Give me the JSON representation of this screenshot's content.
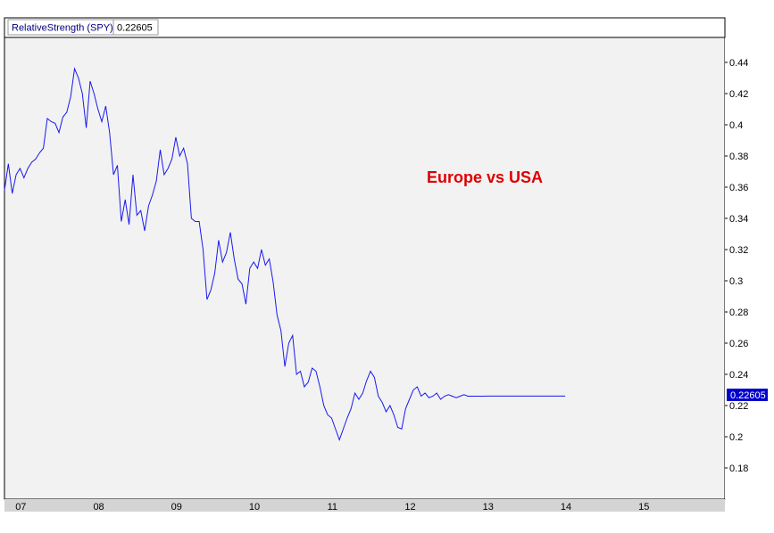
{
  "chart_data": {
    "type": "line",
    "title": "",
    "legend": {
      "series_label": "RelativeStrength (SPY)",
      "value": "0.22605"
    },
    "annotation": {
      "text": "Europe vs USA",
      "color": "#dd0000"
    },
    "last_value_label": "0.22605",
    "xlabel": "",
    "ylabel": "",
    "x_ticks": [
      "07",
      "08",
      "09",
      "10",
      "11",
      "12",
      "13",
      "14",
      "15"
    ],
    "y_ticks": [
      "0.18",
      "0.2",
      "0.22",
      "0.24",
      "0.26",
      "0.28",
      "0.3",
      "0.32",
      "0.34",
      "0.36",
      "0.38",
      "0.4",
      "0.42",
      "0.44"
    ],
    "xlim": [
      2006.8,
      2016.05
    ],
    "ylim": [
      0.16,
      0.456
    ],
    "grid": false,
    "colors": {
      "line": "#1a1aee",
      "plot_bg": "#f2f2f2",
      "axis_strip": "#d4d4d4",
      "last_value_bg": "#0000cc"
    },
    "series": [
      {
        "name": "RelativeStrength (SPY)",
        "x": [
          2006.8,
          2006.85,
          2006.9,
          2006.95,
          2007.0,
          2007.05,
          2007.1,
          2007.15,
          2007.2,
          2007.25,
          2007.3,
          2007.35,
          2007.4,
          2007.45,
          2007.5,
          2007.55,
          2007.6,
          2007.65,
          2007.7,
          2007.75,
          2007.8,
          2007.85,
          2007.9,
          2007.95,
          2008.0,
          2008.05,
          2008.1,
          2008.15,
          2008.2,
          2008.25,
          2008.3,
          2008.35,
          2008.4,
          2008.45,
          2008.5,
          2008.55,
          2008.6,
          2008.65,
          2008.7,
          2008.75,
          2008.8,
          2008.85,
          2008.9,
          2008.95,
          2009.0,
          2009.05,
          2009.1,
          2009.15,
          2009.2,
          2009.25,
          2009.3,
          2009.35,
          2009.4,
          2009.45,
          2009.5,
          2009.55,
          2009.6,
          2009.65,
          2009.7,
          2009.75,
          2009.8,
          2009.85,
          2009.9,
          2009.95,
          2010.0,
          2010.05,
          2010.1,
          2010.15,
          2010.2,
          2010.25,
          2010.3,
          2010.35,
          2010.4,
          2010.45,
          2010.5,
          2010.55,
          2010.6,
          2010.65,
          2010.7,
          2010.75,
          2010.8,
          2010.85,
          2010.9,
          2010.95,
          2011.0,
          2011.05,
          2011.1,
          2011.15,
          2011.2,
          2011.25,
          2011.3,
          2011.35,
          2011.4,
          2011.45,
          2011.5,
          2011.55,
          2011.6,
          2011.65,
          2011.7,
          2011.75,
          2011.8,
          2011.85,
          2011.9,
          2011.95,
          2012.0,
          2012.05,
          2012.1,
          2012.15,
          2012.2,
          2012.25,
          2012.3,
          2012.35,
          2012.4,
          2012.45,
          2012.5,
          2012.55,
          2012.6,
          2012.65,
          2012.7,
          2012.75,
          2012.8,
          2012.85,
          2012.9,
          2012.95,
          2013.0,
          2013.05,
          2013.1,
          2013.15,
          2013.2,
          2013.25,
          2013.3,
          2013.35,
          2013.4,
          2013.45,
          2013.5,
          2013.55,
          2013.6,
          2013.65,
          2013.7,
          2013.75,
          2013.8,
          2013.85,
          2013.9,
          2013.95,
          2014.0
        ],
        "values": [
          0.358,
          0.375,
          0.356,
          0.368,
          0.372,
          0.366,
          0.372,
          0.376,
          0.378,
          0.382,
          0.385,
          0.404,
          0.402,
          0.401,
          0.395,
          0.405,
          0.408,
          0.418,
          0.436,
          0.43,
          0.42,
          0.398,
          0.428,
          0.42,
          0.41,
          0.402,
          0.412,
          0.395,
          0.368,
          0.374,
          0.338,
          0.352,
          0.336,
          0.368,
          0.342,
          0.345,
          0.332,
          0.348,
          0.355,
          0.364,
          0.384,
          0.368,
          0.372,
          0.378,
          0.392,
          0.38,
          0.385,
          0.375,
          0.34,
          0.338,
          0.338,
          0.32,
          0.288,
          0.294,
          0.305,
          0.326,
          0.312,
          0.318,
          0.331,
          0.314,
          0.301,
          0.298,
          0.285,
          0.308,
          0.312,
          0.308,
          0.32,
          0.31,
          0.314,
          0.299,
          0.278,
          0.268,
          0.245,
          0.26,
          0.265,
          0.24,
          0.242,
          0.232,
          0.235,
          0.244,
          0.242,
          0.232,
          0.22,
          0.214,
          0.212,
          0.205,
          0.198,
          0.205,
          0.212,
          0.218,
          0.228,
          0.224,
          0.228,
          0.236,
          0.242,
          0.238,
          0.226,
          0.222,
          0.216,
          0.22,
          0.214,
          0.206,
          0.205,
          0.218,
          0.224,
          0.23,
          0.232,
          0.226,
          0.228,
          0.225,
          0.226,
          0.228,
          0.224,
          0.226,
          0.227,
          0.226,
          0.225,
          0.226,
          0.227,
          0.226,
          0.226,
          0.226,
          0.226,
          0.226,
          0.22605,
          0.22605,
          0.22605,
          0.22605,
          0.22605,
          0.22605,
          0.22605,
          0.22605,
          0.22605,
          0.22605,
          0.22605,
          0.22605,
          0.22605,
          0.22605,
          0.22605,
          0.22605,
          0.22605,
          0.22605,
          0.22605,
          0.22605,
          0.22605
        ]
      }
    ]
  }
}
